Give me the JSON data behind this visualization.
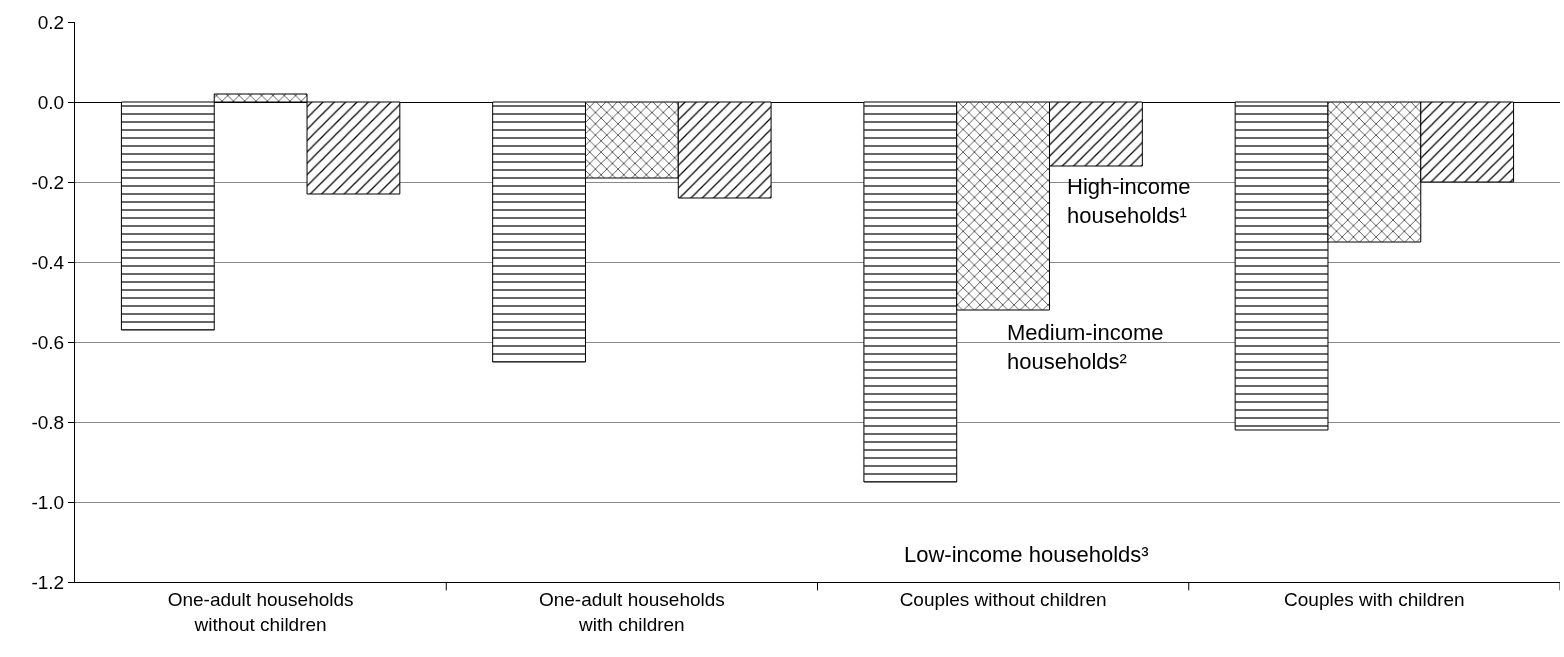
{
  "chart_data": {
    "type": "bar",
    "categories": [
      "One-adult households\nwithout children",
      "One-adult households\nwith children",
      "Couples without children",
      "Couples with children"
    ],
    "series": [
      {
        "name": "Low-income households³",
        "color": "#000000",
        "values": [
          -0.57,
          -0.65,
          -0.95,
          -0.82
        ]
      },
      {
        "name": "Medium-income households²",
        "color": "#000000",
        "values": [
          0.02,
          -0.19,
          -0.52,
          -0.35
        ]
      },
      {
        "name": "High-income households¹",
        "color": "#000000",
        "values": [
          -0.23,
          -0.24,
          -0.16,
          -0.2
        ]
      }
    ],
    "ylim": [
      -1.2,
      0.2
    ],
    "yticks": [
      {
        "value": 0.2,
        "label": "0.2"
      },
      {
        "value": 0.0,
        "label": "0.0"
      },
      {
        "value": -0.2,
        "label": "-0.2"
      },
      {
        "value": -0.4,
        "label": "-0.4"
      },
      {
        "value": -0.6,
        "label": "-0.6"
      },
      {
        "value": -0.8,
        "label": "-0.8"
      },
      {
        "value": -1.0,
        "label": "-1.0"
      },
      {
        "value": -1.2,
        "label": "-1.2"
      }
    ],
    "grid": "y",
    "legend": false
  }
}
